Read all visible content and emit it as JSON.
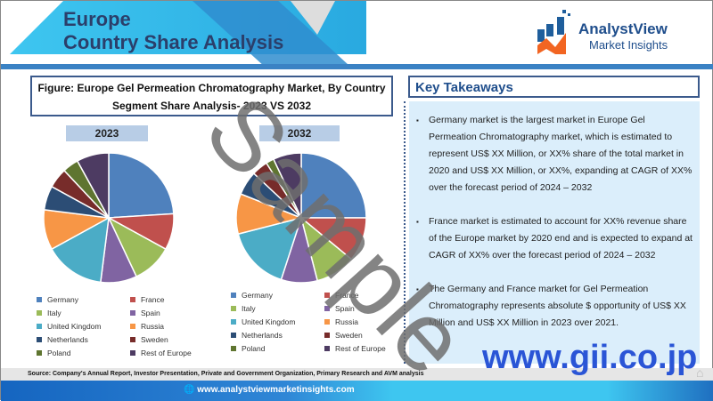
{
  "header": {
    "title_line1": "Europe",
    "title_line2": "Country Share Analysis",
    "logo_name": "AnalystView",
    "logo_sub": "Market Insights"
  },
  "figure": {
    "title": "Figure: Europe Gel Permeation Chromatography Market, By Country Segment Share Analysis- 2023 VS 2032"
  },
  "chart_data": [
    {
      "type": "pie",
      "title": "2023",
      "categories": [
        "Germany",
        "France",
        "Italy",
        "Spain",
        "United Kingdom",
        "Russia",
        "Netherlands",
        "Sweden",
        "Poland",
        "Rest of Europe"
      ],
      "values": [
        24,
        9,
        10,
        9,
        15,
        10,
        6,
        5,
        4,
        8
      ]
    },
    {
      "type": "pie",
      "title": "2032",
      "categories": [
        "Germany",
        "France",
        "Italy",
        "Spain",
        "United Kingdom",
        "Russia",
        "Netherlands",
        "Sweden",
        "Poland",
        "Rest of Europe"
      ],
      "values": [
        25,
        11,
        10,
        9,
        16,
        10,
        6,
        4,
        2,
        7
      ]
    }
  ],
  "colors": [
    "#4f81bd",
    "#c0504d",
    "#9bbb59",
    "#8064a2",
    "#4bacc6",
    "#f79646",
    "#2c4d75",
    "#772c2a",
    "#5f7530",
    "#4d3b62"
  ],
  "legend": [
    "Germany",
    "France",
    "Italy",
    "Spain",
    "United Kingdom",
    "Russia",
    "Netherlands",
    "Sweden",
    "Poland",
    "Rest of Europe"
  ],
  "takeaways": {
    "title": "Key Takeaways",
    "items": [
      "Germany market is the largest market in Europe Gel Permeation Chromatography market, which is estimated to represent US$ XX Million, or XX% share of the total market in 2020 and US$ XX Million, or XX%, expanding at CAGR of XX% over the forecast period of 2024 – 2032",
      "France market is estimated to account for XX% revenue share of the Europe market by 2020 end and is expected to expand at CAGR of XX% over the forecast period of 2024 – 2032",
      "The Germany and France market for Gel Permeation Chromatography represents absolute $ opportunity of US$ XX Million and US$ XX Million in 2023 over 2021."
    ]
  },
  "source": "Source: Company's Annual Report, Investor Presentation, Private and Government Organization, Primary Research and AVM analysis",
  "footer": {
    "url": "www.analystviewmarketinsights.com"
  },
  "watermarks": {
    "sample": "Sample",
    "gii": "www.gii.co.jp"
  }
}
